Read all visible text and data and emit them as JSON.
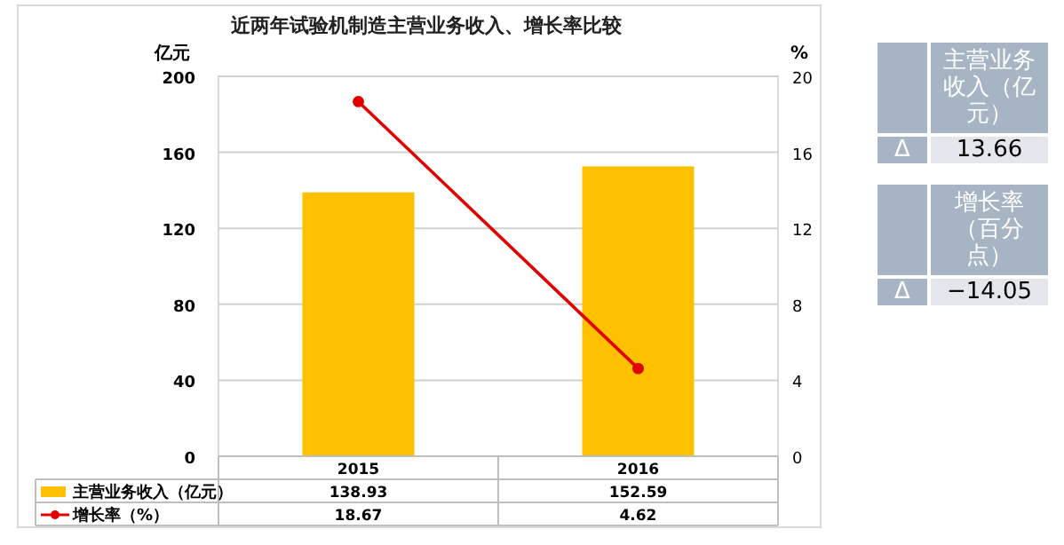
{
  "chart_data": [
    {
      "type": "bar",
      "title": "近两年试验机制造主营业务收入、增长率比较",
      "ylabel": "亿元",
      "y2label": "%",
      "categories": [
        "2015",
        "2016"
      ],
      "series": [
        {
          "name": "主营业务收入（亿元）",
          "type": "bar",
          "color": "#ffc000",
          "values": [
            138.93,
            152.59
          ]
        },
        {
          "name": "增长率（%）",
          "type": "line",
          "axis": "y2",
          "color": "#e00000",
          "marker": "circle",
          "values": [
            18.67,
            4.62
          ]
        }
      ],
      "ylim": [
        0,
        200
      ],
      "yticks": [
        0,
        40,
        80,
        120,
        160,
        200
      ],
      "y2lim": [
        0,
        20
      ],
      "y2ticks": [
        0,
        4,
        8,
        12,
        16,
        20
      ],
      "grid": "y",
      "data_labels": true,
      "legend": "bottom"
    },
    {
      "type": "other",
      "annotations": [
        "主营业务收入（亿元）",
        "Δ",
        "13.66",
        "增长率（百分点）",
        "Δ",
        "−14.05"
      ]
    }
  ]
}
